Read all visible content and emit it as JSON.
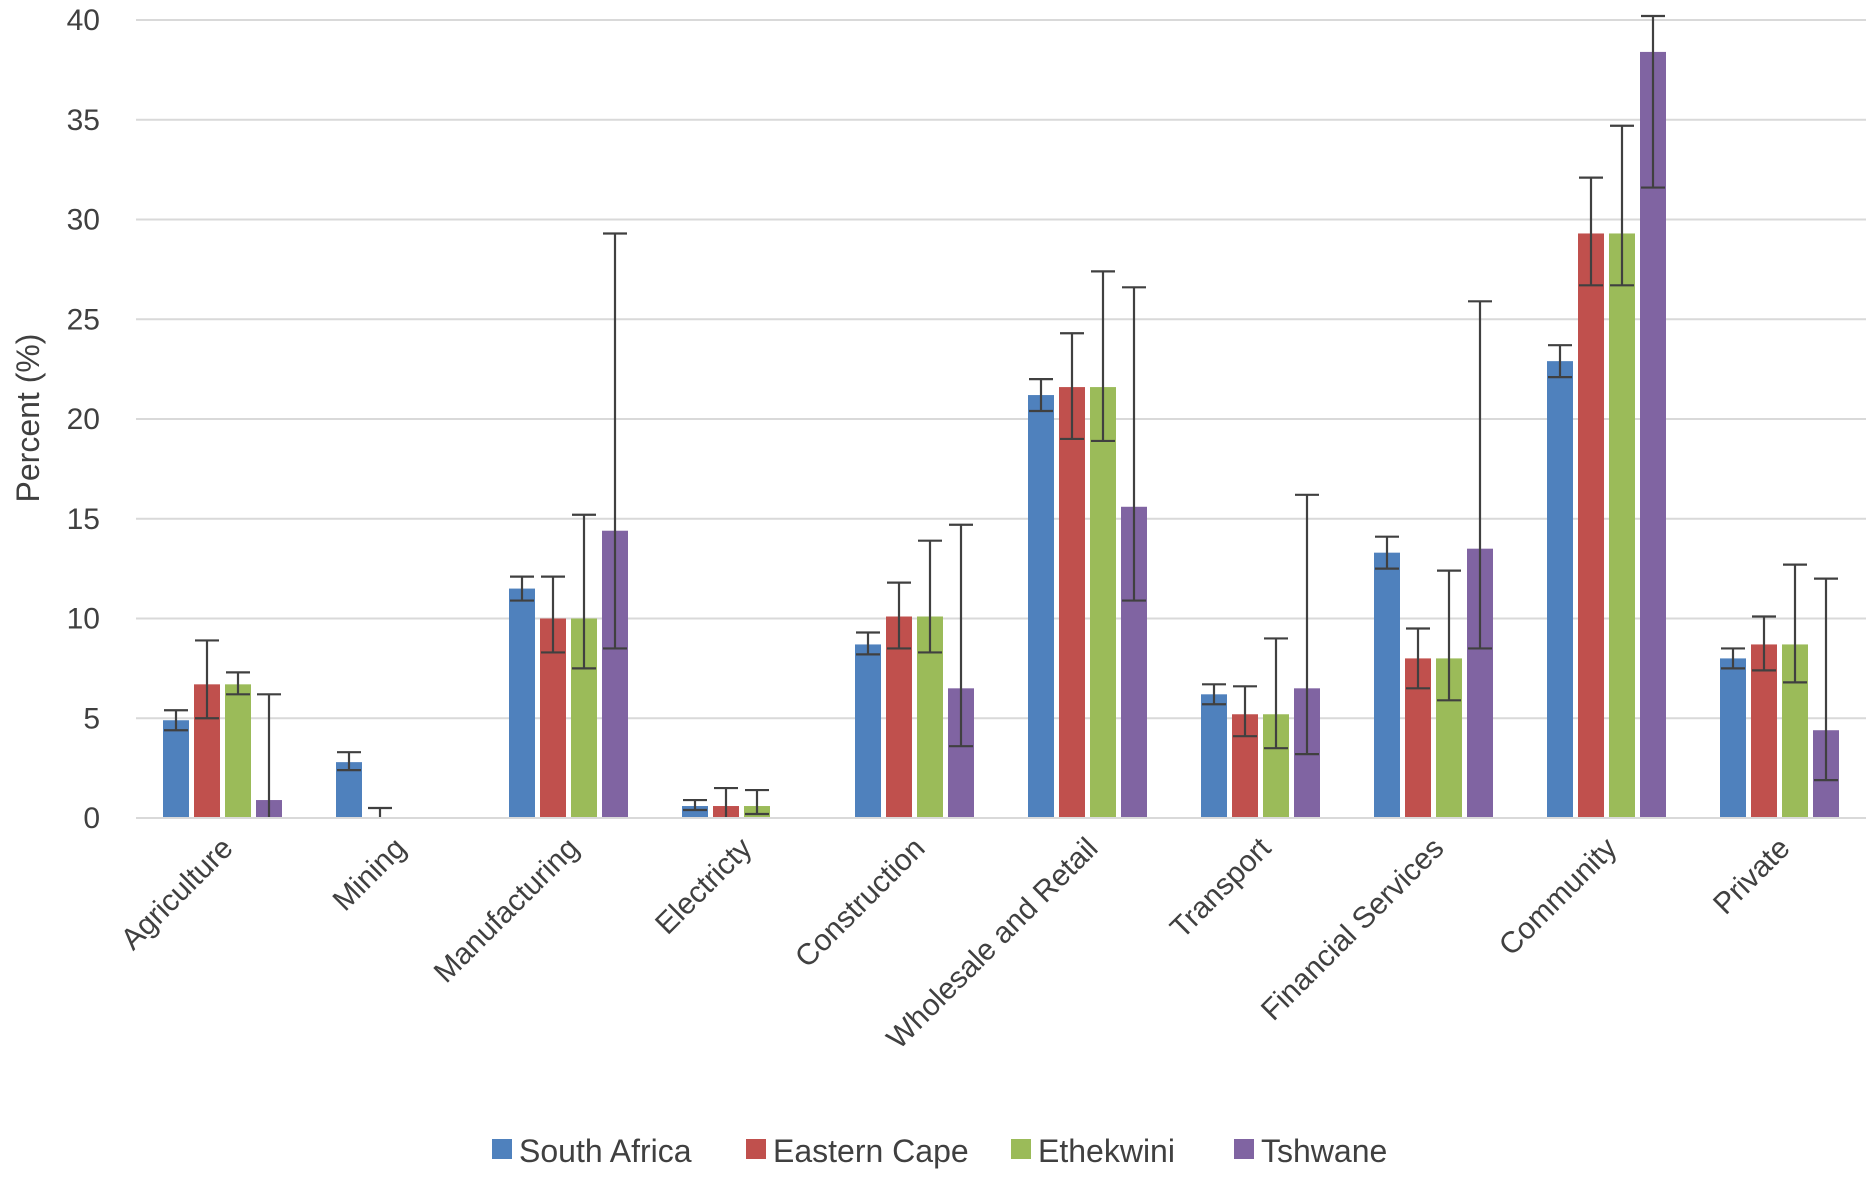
{
  "chart_data": {
    "type": "bar",
    "ylabel": "Percent (%)",
    "xlabel": "",
    "ylim": [
      0,
      40
    ],
    "yticks": [
      0,
      5,
      10,
      15,
      20,
      25,
      30,
      35,
      40
    ],
    "grid": true,
    "legend_position": "bottom",
    "categories": [
      "Agriculture",
      "Mining",
      "Manufacturing",
      "Electricty",
      "Construction",
      "Wholesale and Retail",
      "Transport",
      "Financial Services",
      "Community",
      "Private"
    ],
    "series": [
      {
        "name": "South Africa",
        "color": "#4F81BD",
        "values": [
          4.9,
          2.8,
          11.5,
          0.6,
          8.7,
          21.2,
          6.2,
          13.3,
          22.9,
          8.0
        ],
        "err_low": [
          4.4,
          2.4,
          10.9,
          0.4,
          8.2,
          20.4,
          5.7,
          12.5,
          22.1,
          7.5
        ],
        "err_high": [
          5.4,
          3.3,
          12.1,
          0.9,
          9.3,
          22.0,
          6.7,
          14.1,
          23.7,
          8.5
        ]
      },
      {
        "name": "Eastern Cape",
        "color": "#C0504D",
        "values": [
          6.7,
          0.0,
          10.0,
          0.6,
          10.1,
          21.6,
          5.2,
          8.0,
          29.3,
          8.7
        ],
        "err_low": [
          5.0,
          0.0,
          8.3,
          0.0,
          8.5,
          19.0,
          4.1,
          6.5,
          26.7,
          7.4
        ],
        "err_high": [
          8.9,
          0.5,
          12.1,
          1.5,
          11.8,
          24.3,
          6.6,
          9.5,
          32.1,
          10.1
        ]
      },
      {
        "name": "Ethekwini",
        "color": "#9BBB59",
        "values": [
          6.7,
          0.0,
          10.0,
          0.6,
          10.1,
          21.6,
          5.2,
          8.0,
          29.3,
          8.7
        ],
        "err_low": [
          6.2,
          0.0,
          7.5,
          0.2,
          8.3,
          18.9,
          3.5,
          5.9,
          26.7,
          6.8
        ],
        "err_high": [
          7.3,
          0.0,
          15.2,
          1.4,
          13.9,
          27.4,
          9.0,
          12.4,
          34.7,
          12.7
        ]
      },
      {
        "name": "Tshwane",
        "color": "#8064A2",
        "values": [
          0.9,
          0.0,
          14.4,
          0.0,
          6.5,
          15.6,
          6.5,
          13.5,
          38.4,
          4.4
        ],
        "err_low": [
          0.0,
          0.0,
          8.5,
          0.0,
          3.6,
          10.9,
          3.2,
          8.5,
          31.6,
          1.9
        ],
        "err_high": [
          6.2,
          0.0,
          29.3,
          0.0,
          14.7,
          26.6,
          16.2,
          25.9,
          40.2,
          12.0
        ]
      }
    ]
  }
}
